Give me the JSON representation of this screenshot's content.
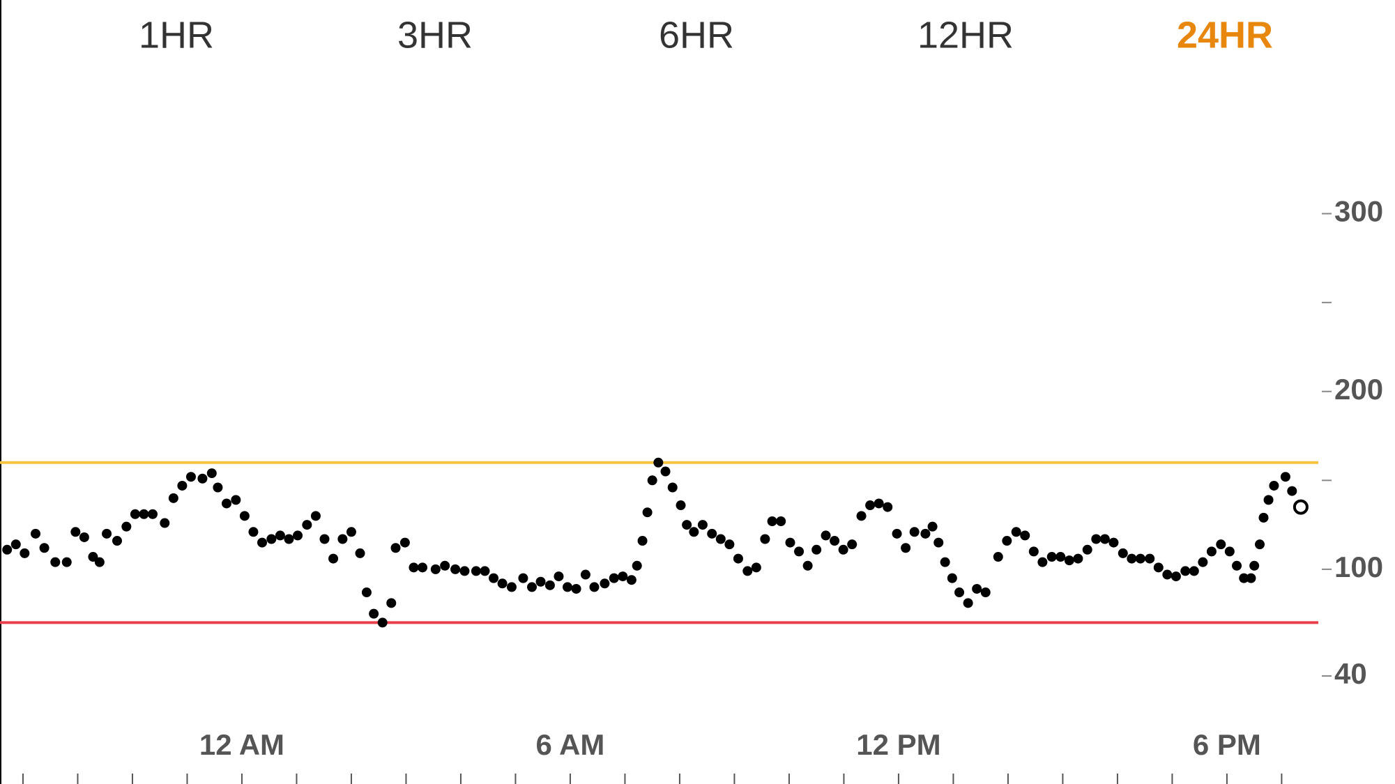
{
  "chart_data": {
    "type": "scatter",
    "range_options": [
      "1HR",
      "3HR",
      "6HR",
      "12HR",
      "24HR"
    ],
    "selected_range": 4,
    "selected_color": "#e8870e",
    "color": "#000000",
    "x": [
      -4.29,
      -4.13,
      -3.97,
      -3.77,
      -3.61,
      -3.41,
      -3.2,
      -3.04,
      -2.88,
      -2.72,
      -2.6,
      -2.47,
      -2.28,
      -2.11,
      -1.95,
      -1.79,
      -1.63,
      -1.41,
      -1.25,
      -1.09,
      -0.93,
      -0.72,
      -0.55,
      -0.44,
      -0.28,
      -0.11,
      0.05,
      0.21,
      0.37,
      0.54,
      0.7,
      0.86,
      1.02,
      1.19,
      1.35,
      1.51,
      1.67,
      1.84,
      2.0,
      2.16,
      2.28,
      2.41,
      2.57,
      2.73,
      2.81,
      2.98,
      3.14,
      3.3,
      3.54,
      3.71,
      3.9,
      4.07,
      4.28,
      4.44,
      4.6,
      4.76,
      4.93,
      5.14,
      5.3,
      5.46,
      5.63,
      5.79,
      5.95,
      6.11,
      6.28,
      6.44,
      6.63,
      6.8,
      6.96,
      7.12,
      7.22,
      7.32,
      7.41,
      7.5,
      7.61,
      7.74,
      7.87,
      8.02,
      8.13,
      8.26,
      8.42,
      8.59,
      8.75,
      8.91,
      9.07,
      9.24,
      9.4,
      9.56,
      9.69,
      9.85,
      10.02,
      10.18,
      10.34,
      10.5,
      10.67,
      10.83,
      10.99,
      11.15,
      11.32,
      11.48,
      11.64,
      11.8,
      11.97,
      12.13,
      12.29,
      12.49,
      12.62,
      12.73,
      12.85,
      12.98,
      13.11,
      13.27,
      13.43,
      13.59,
      13.82,
      13.98,
      14.15,
      14.31,
      14.47,
      14.63,
      14.8,
      14.96,
      15.12,
      15.28,
      15.45,
      15.61,
      15.77,
      15.93,
      16.1,
      16.26,
      16.42,
      16.59,
      16.75,
      16.91,
      17.07,
      17.24,
      17.4,
      17.56,
      17.72,
      17.89,
      18.05,
      18.18,
      18.31,
      18.44,
      18.5,
      18.6,
      18.67,
      18.76,
      18.86,
      19.07,
      19.19
    ],
    "values": [
      111,
      114,
      109,
      120,
      112,
      104,
      104,
      121,
      118,
      107,
      104,
      120,
      116,
      124,
      131,
      131,
      131,
      126,
      140,
      147,
      152,
      151,
      154,
      146,
      137,
      139,
      130,
      121,
      115,
      117,
      119,
      117,
      119,
      125,
      130,
      117,
      106,
      117,
      121,
      109,
      87,
      75,
      70,
      81,
      112,
      115,
      101,
      101,
      100,
      102,
      100,
      99,
      99,
      99,
      95,
      92,
      90,
      95,
      90,
      93,
      91,
      96,
      90,
      89,
      97,
      90,
      92,
      95,
      96,
      94,
      102,
      116,
      132,
      150,
      160,
      155,
      146,
      136,
      125,
      121,
      125,
      120,
      117,
      114,
      106,
      99,
      101,
      117,
      127,
      127,
      115,
      110,
      102,
      111,
      119,
      116,
      111,
      114,
      130,
      136,
      137,
      135,
      120,
      112,
      121,
      120,
      124,
      115,
      104,
      95,
      87,
      81,
      89,
      87,
      107,
      116,
      121,
      119,
      110,
      104,
      107,
      107,
      105,
      106,
      111,
      117,
      117,
      115,
      109,
      106,
      106,
      106,
      101,
      97,
      96,
      99,
      99,
      104,
      110,
      114,
      110,
      102,
      95,
      95,
      102,
      114,
      129,
      139,
      147,
      152,
      144
    ],
    "latest": {
      "x": 19.35,
      "value": 135
    },
    "thresholds": [
      {
        "value": 160,
        "color": "#f5c542"
      },
      {
        "value": 70,
        "color": "#e8404a"
      }
    ],
    "xlim": [
      -4.42,
      19.67
    ],
    "xticks": [
      {
        "value": 0,
        "label": "12 AM"
      },
      {
        "value": 6,
        "label": "6 AM"
      },
      {
        "value": 12,
        "label": "12 PM"
      },
      {
        "value": 18,
        "label": "6 PM"
      }
    ],
    "xminorticks": [
      -4,
      -3,
      -2,
      -1,
      0,
      1,
      2,
      3,
      4,
      5,
      6,
      7,
      8,
      9,
      10,
      11,
      12,
      13,
      14,
      15,
      16,
      17,
      18,
      19
    ],
    "ylim": [
      20,
      350
    ],
    "yticks": [
      40,
      100,
      200,
      300
    ],
    "yminorticks": [
      150,
      250
    ]
  }
}
